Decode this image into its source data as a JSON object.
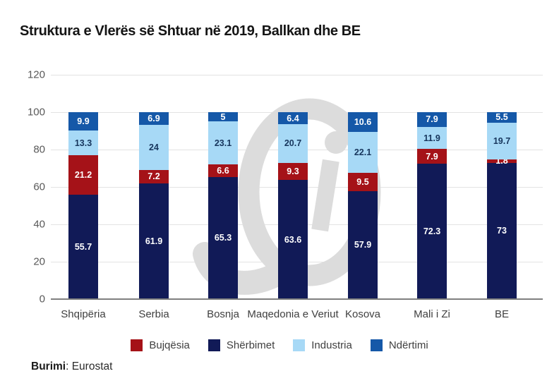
{
  "title": "Struktura e Vlerës së Shtuar në 2019, Ballkan dhe BE",
  "source": {
    "label": "Burimi",
    "value": ": Eurostat"
  },
  "watermark": {
    "name": "si-monogram-watermark",
    "color": "#dcdcdc"
  },
  "colors": {
    "grid": "#e3e3e3",
    "axis": "#7f7f7f",
    "tick_text": "#595959",
    "category_text": "#404040"
  },
  "chart_data": {
    "type": "bar",
    "stacked": true,
    "title": "Struktura e Vlerës së Shtuar në 2019, Ballkan dhe BE",
    "categories": [
      "Shqipëria",
      "Serbia",
      "Bosnja",
      "Maqedonia e Veriut",
      "Kosova",
      "Mali i Zi",
      "BE"
    ],
    "series": [
      {
        "name": "Shërbimet",
        "color": "#111a57",
        "label_color": "#ffffff",
        "values": [
          55.7,
          61.9,
          65.3,
          63.6,
          57.9,
          72.3,
          73
        ]
      },
      {
        "name": "Bujqësia",
        "color": "#a51218",
        "label_color": "#ffffff",
        "values": [
          21.2,
          7.2,
          6.6,
          9.3,
          9.5,
          7.9,
          1.8
        ]
      },
      {
        "name": "Industria",
        "color": "#a7d9f6",
        "label_color": "#17365d",
        "values": [
          13.3,
          24,
          23.1,
          20.7,
          22.1,
          11.9,
          19.7
        ]
      },
      {
        "name": "Ndërtimi",
        "color": "#1558a8",
        "label_color": "#ffffff",
        "values": [
          9.9,
          6.9,
          5,
          6.4,
          10.6,
          7.9,
          5.5
        ]
      }
    ],
    "legend_order": [
      "Bujqësia",
      "Shërbimet",
      "Industria",
      "Ndërtimi"
    ],
    "legend_position": "bottom",
    "y_ticks": [
      0,
      20,
      40,
      60,
      80,
      100,
      120
    ],
    "ylim": [
      0,
      120
    ],
    "xlabel": "",
    "ylabel": "",
    "grid": true
  }
}
